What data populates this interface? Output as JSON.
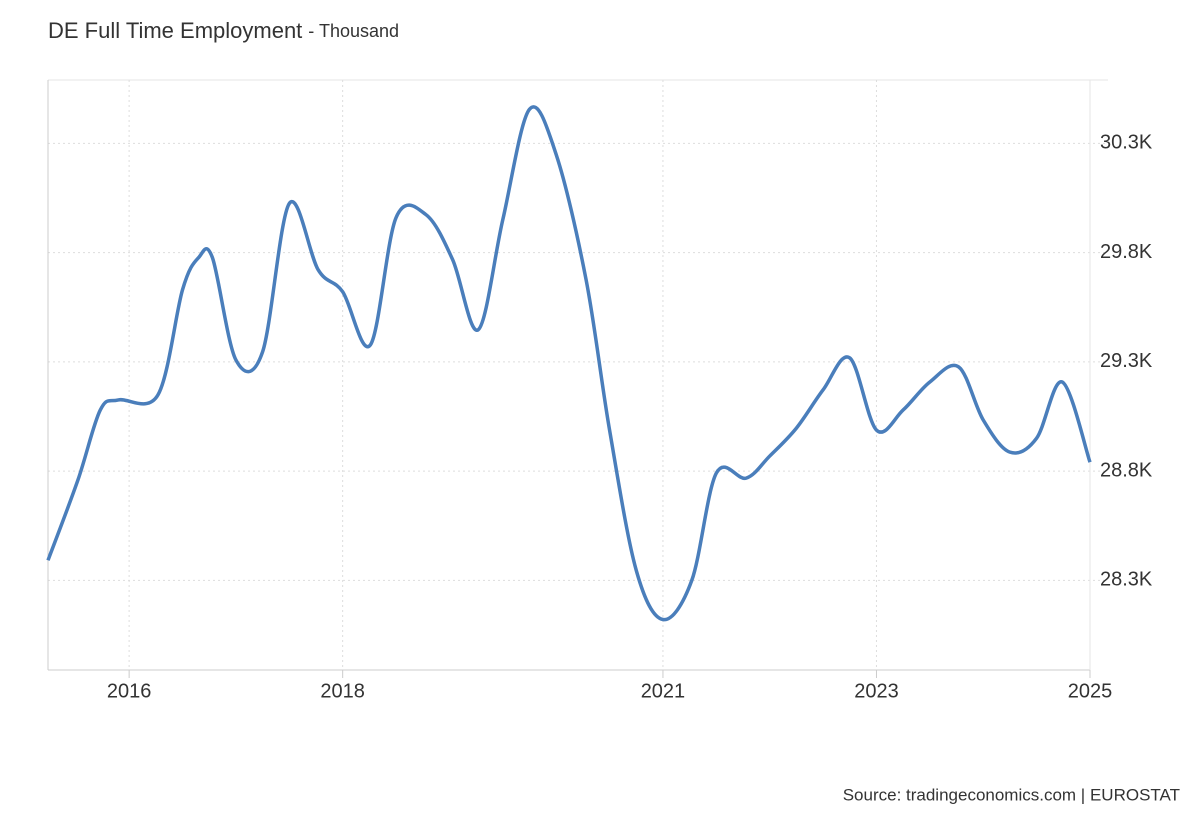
{
  "chart_data": {
    "type": "line",
    "title": "DE Full Time Employment",
    "subtitle": "- Thousand",
    "source": "Source: tradingeconomics.com | EUROSTAT",
    "xlim": [
      2015.24,
      2025.0
    ],
    "xticks": [
      2016,
      2018,
      2021,
      2023,
      2025
    ],
    "ylim": [
      27890,
      30590
    ],
    "yticks": [
      {
        "value": 28300,
        "label": "28.3K"
      },
      {
        "value": 28800,
        "label": "28.8K"
      },
      {
        "value": 29300,
        "label": "29.3K"
      },
      {
        "value": 29800,
        "label": "29.8K"
      },
      {
        "value": 30300,
        "label": "30.3K"
      }
    ],
    "grid": true,
    "series": [
      {
        "name": "DE Full Time Employment",
        "color": "#4a7ebb",
        "x": [
          2015.24,
          2015.52,
          2015.73,
          2015.9,
          2016.27,
          2016.5,
          2016.65,
          2016.78,
          2017.0,
          2017.25,
          2017.5,
          2017.77,
          2018.0,
          2018.26,
          2018.5,
          2018.78,
          2019.03,
          2019.27,
          2019.5,
          2019.75,
          2020.0,
          2020.28,
          2020.5,
          2020.75,
          2021.0,
          2021.27,
          2021.5,
          2021.78,
          2022.0,
          2022.25,
          2022.5,
          2022.75,
          2023.0,
          2023.25,
          2023.5,
          2023.77,
          2024.0,
          2024.25,
          2024.5,
          2024.74,
          2025.0
        ],
        "values": [
          28392,
          28759,
          29080,
          29126,
          29149,
          29630,
          29777,
          29777,
          29309,
          29346,
          30025,
          29722,
          29621,
          29378,
          29960,
          29974,
          29768,
          29447,
          29951,
          30456,
          30249,
          29676,
          28988,
          28346,
          28121,
          28300,
          28791,
          28768,
          28869,
          28997,
          29172,
          29318,
          28988,
          29080,
          29208,
          29277,
          29034,
          28887,
          28951,
          29208,
          28841
        ]
      }
    ]
  }
}
